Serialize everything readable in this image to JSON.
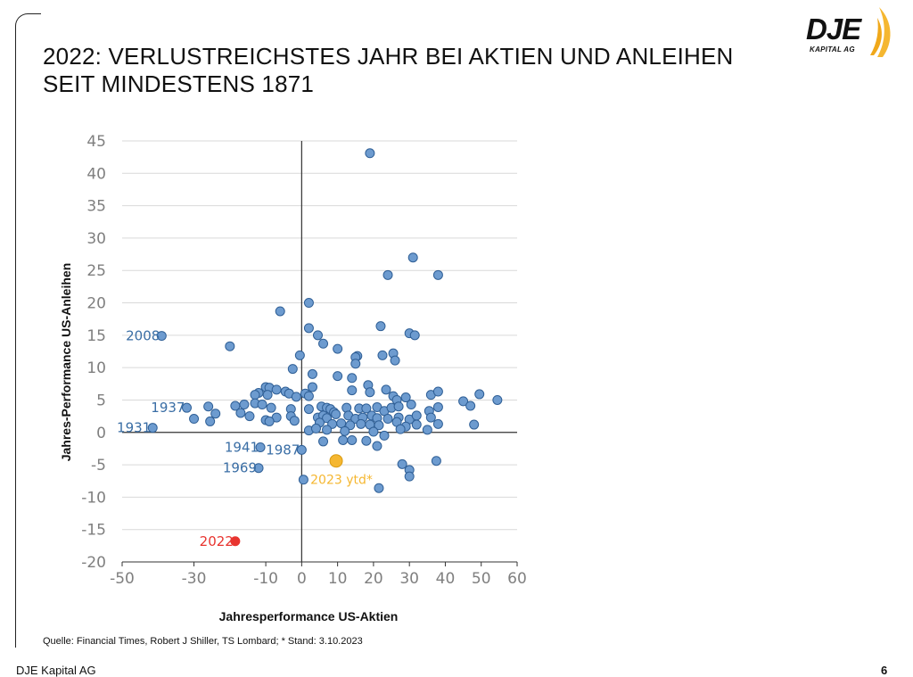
{
  "title": {
    "line1": "2022: VERLUSTREICHSTES JAHR BEI AKTIEN UND ANLEIHEN",
    "line2": "SEIT MINDESTENS 1871"
  },
  "logo": {
    "name": "DJE",
    "sub": "KAPITAL AG"
  },
  "source": "Quelle: Financial Times, Robert J Shiller, TS Lombard; * Stand: 3.10.2023",
  "footer": {
    "company": "DJE Kapital AG",
    "page": "6"
  },
  "colors": {
    "point_fill": "#6d9bcf",
    "point_stroke": "#2f5f96",
    "label_blue": "#3a6ea5",
    "highlight_2022": "#e8342f",
    "highlight_2023": "#f5b731",
    "grid": "#d9d9d9",
    "axis": "#333333",
    "tick_label": "#7f7f7f"
  },
  "chart_data": {
    "type": "scatter",
    "xlabel": "Jahresperformance US-Aktien",
    "ylabel": "Jahres-Performance US-Anleihen",
    "xlim": [
      -50,
      60
    ],
    "ylim": [
      -20,
      45
    ],
    "xticks": [
      -50,
      -30,
      -10,
      0,
      10,
      20,
      30,
      40,
      50,
      60
    ],
    "xtick_labels": [
      "-50",
      "-30",
      "-10",
      "0",
      "10",
      "20",
      "30",
      "40",
      "50",
      "60"
    ],
    "yticks": [
      -20,
      -15,
      -10,
      -5,
      0,
      5,
      10,
      15,
      20,
      25,
      30,
      35,
      40,
      45
    ],
    "ytick_labels": [
      "-20",
      "-15",
      "-10",
      "-5",
      "0",
      "5",
      "10",
      "15",
      "20",
      "25",
      "30",
      "35",
      "40",
      "45"
    ],
    "grid": "horizontal",
    "labeled_points": [
      {
        "label": "2008",
        "x": -39,
        "y": 14.9,
        "color": "blue"
      },
      {
        "label": "1937",
        "x": -32,
        "y": 3.8,
        "color": "blue"
      },
      {
        "label": "1931",
        "x": -41.5,
        "y": 0.7,
        "color": "blue"
      },
      {
        "label": "1941",
        "x": -11.5,
        "y": -2.3,
        "color": "blue"
      },
      {
        "label": "1987",
        "x": 0,
        "y": -2.7,
        "color": "blue"
      },
      {
        "label": "1969",
        "x": -12,
        "y": -5.5,
        "color": "blue"
      },
      {
        "label": "2022",
        "x": -18.5,
        "y": -16.8,
        "color": "red"
      },
      {
        "label": "2023 ytd*",
        "x": 9.6,
        "y": -4.4,
        "color": "orange"
      }
    ],
    "points": [
      [
        19,
        43.1
      ],
      [
        31,
        27.0
      ],
      [
        24,
        24.3
      ],
      [
        38,
        24.3
      ],
      [
        2,
        20
      ],
      [
        -6,
        18.7
      ],
      [
        22,
        16.4
      ],
      [
        2,
        16.1
      ],
      [
        30,
        15.3
      ],
      [
        31.5,
        15.0
      ],
      [
        4.5,
        15.0
      ],
      [
        6,
        13.7
      ],
      [
        -20,
        13.3
      ],
      [
        10,
        12.9
      ],
      [
        -0.5,
        11.9
      ],
      [
        15.5,
        11.8
      ],
      [
        15,
        11.6
      ],
      [
        22.5,
        11.9
      ],
      [
        25.5,
        12.2
      ],
      [
        26,
        11.1
      ],
      [
        15,
        10.6
      ],
      [
        -2.5,
        9.8
      ],
      [
        3,
        9.0
      ],
      [
        10,
        8.7
      ],
      [
        14,
        8.4
      ],
      [
        18.5,
        7.3
      ],
      [
        -10,
        7.0
      ],
      [
        -9,
        6.9
      ],
      [
        -7,
        6.6
      ],
      [
        -12,
        6.1
      ],
      [
        3,
        7.0
      ],
      [
        14,
        6.5
      ],
      [
        23.5,
        6.6
      ],
      [
        19,
        6.2
      ],
      [
        -4.5,
        6.3
      ],
      [
        -3.5,
        6.0
      ],
      [
        1,
        6.0
      ],
      [
        2,
        5.6
      ],
      [
        -13,
        5.8
      ],
      [
        -9.5,
        5.8
      ],
      [
        -1.5,
        5.5
      ],
      [
        25.5,
        5.6
      ],
      [
        26.5,
        5.0
      ],
      [
        29,
        5.4
      ],
      [
        36,
        5.8
      ],
      [
        38,
        6.3
      ],
      [
        45,
        4.8
      ],
      [
        49.5,
        5.9
      ],
      [
        54.5,
        5.0
      ],
      [
        47,
        4.1
      ],
      [
        -18.5,
        4.1
      ],
      [
        -16,
        4.3
      ],
      [
        -13,
        4.5
      ],
      [
        -11,
        4.3
      ],
      [
        -8.5,
        3.8
      ],
      [
        -3,
        3.6
      ],
      [
        2,
        3.6
      ],
      [
        5.5,
        4.0
      ],
      [
        7,
        3.8
      ],
      [
        8,
        3.6
      ],
      [
        9,
        3.1
      ],
      [
        12.5,
        3.8
      ],
      [
        16,
        3.7
      ],
      [
        18,
        3.7
      ],
      [
        21,
        3.9
      ],
      [
        23,
        3.3
      ],
      [
        25,
        3.8
      ],
      [
        27,
        4.0
      ],
      [
        30.5,
        4.3
      ],
      [
        35.5,
        3.3
      ],
      [
        38,
        3.9
      ],
      [
        -26,
        4.0
      ],
      [
        -24,
        2.9
      ],
      [
        -17,
        3.0
      ],
      [
        -14.5,
        2.5
      ],
      [
        -10,
        1.9
      ],
      [
        -7,
        2.3
      ],
      [
        -3,
        2.5
      ],
      [
        -2,
        1.8
      ],
      [
        4.5,
        2.3
      ],
      [
        6,
        2.6
      ],
      [
        7,
        2.2
      ],
      [
        9.5,
        2.8
      ],
      [
        13,
        2.6
      ],
      [
        15,
        2.1
      ],
      [
        17,
        2.3
      ],
      [
        19.5,
        2.6
      ],
      [
        21,
        2.2
      ],
      [
        24,
        2.1
      ],
      [
        27,
        2.3
      ],
      [
        30,
        2.0
      ],
      [
        32,
        2.6
      ],
      [
        36,
        2.3
      ],
      [
        -30,
        2.1
      ],
      [
        -25.5,
        1.7
      ],
      [
        -9,
        1.7
      ],
      [
        5,
        1.5
      ],
      [
        8.5,
        1.3
      ],
      [
        11,
        1.4
      ],
      [
        13.5,
        1.1
      ],
      [
        16.5,
        1.3
      ],
      [
        19,
        1.2
      ],
      [
        21.5,
        1.1
      ],
      [
        26.5,
        1.6
      ],
      [
        29,
        0.9
      ],
      [
        32,
        1.2
      ],
      [
        38,
        1.3
      ],
      [
        48,
        1.2
      ],
      [
        2,
        0.3
      ],
      [
        4,
        0.6
      ],
      [
        7,
        0.4
      ],
      [
        12,
        0.2
      ],
      [
        20,
        0.1
      ],
      [
        23,
        -0.5
      ],
      [
        27.5,
        0.5
      ],
      [
        35,
        0.4
      ],
      [
        6,
        -1.4
      ],
      [
        11.5,
        -1.2
      ],
      [
        14,
        -1.2
      ],
      [
        18,
        -1.3
      ],
      [
        21,
        -2.1
      ],
      [
        28,
        -4.9
      ],
      [
        30,
        -5.8
      ],
      [
        30,
        -6.8
      ],
      [
        37.5,
        -4.4
      ],
      [
        21.5,
        -8.6
      ],
      [
        0.5,
        -7.3
      ]
    ]
  }
}
